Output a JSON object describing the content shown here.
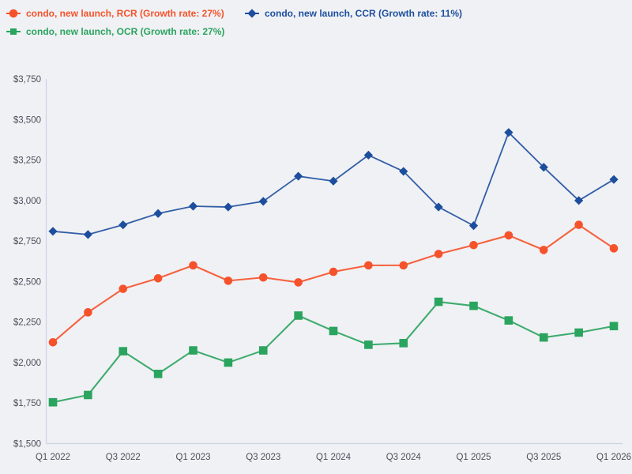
{
  "styles": {
    "background": "#f0f1f4",
    "axis_color": "#c9d3e6",
    "tick_text_color": "#4b4f5b",
    "rcr_color": "#f5522b",
    "ccr_color": "#1d4e9e",
    "ocr_color": "#2aa45f"
  },
  "chart_data": {
    "type": "line",
    "x": [
      "Q1 2022",
      "Q2 2022",
      "Q3 2022",
      "Q4 2022",
      "Q1 2023",
      "Q2 2023",
      "Q3 2023",
      "Q4 2023",
      "Q1 2024",
      "Q2 2024",
      "Q3 2024",
      "Q4 2024",
      "Q1 2025",
      "Q2 2025",
      "Q3 2025",
      "Q4 2025",
      "Q1 2026"
    ],
    "x_ticks_shown": [
      "Q1 2022",
      "Q3 2022",
      "Q1 2023",
      "Q3 2023",
      "Q1 2024",
      "Q3 2024",
      "Q1 2025",
      "Q3 2025",
      "Q1 2026"
    ],
    "series": [
      {
        "name": "condo, new launch, RCR (Growth rate: 27%)",
        "region": "RCR",
        "growth_rate": "27%",
        "color": "#f5522b",
        "marker": "circle",
        "values": [
          2125,
          2310,
          2455,
          2520,
          2600,
          2505,
          2525,
          2495,
          2560,
          2600,
          2600,
          2670,
          2725,
          2785,
          2695,
          2850,
          2705
        ]
      },
      {
        "name": "condo, new launch, CCR (Growth rate: 11%)",
        "region": "CCR",
        "growth_rate": "11%",
        "color": "#1d4e9e",
        "marker": "diamond",
        "values": [
          2810,
          2790,
          2850,
          2920,
          2965,
          2960,
          2995,
          3150,
          3120,
          3280,
          3180,
          2960,
          2845,
          3420,
          3205,
          3000,
          3130
        ]
      },
      {
        "name": "condo, new launch, OCR (Growth rate: 27%)",
        "region": "OCR",
        "growth_rate": "27%",
        "color": "#2aa45f",
        "marker": "square",
        "values": [
          1755,
          1800,
          2070,
          1930,
          2075,
          2000,
          2075,
          2290,
          2195,
          2110,
          2120,
          2375,
          2350,
          2260,
          2155,
          2185,
          2225
        ]
      }
    ],
    "ylim": [
      1500,
      3750
    ],
    "y_ticks": [
      1500,
      1750,
      2000,
      2250,
      2500,
      2750,
      3000,
      3250,
      3500,
      3750
    ],
    "y_tick_prefix": "$",
    "grid": false,
    "legend_position": "top-left",
    "title": "",
    "xlabel": "",
    "ylabel": ""
  }
}
